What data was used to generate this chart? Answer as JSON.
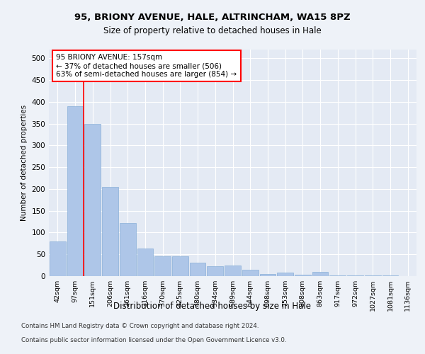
{
  "title1": "95, BRIONY AVENUE, HALE, ALTRINCHAM, WA15 8PZ",
  "title2": "Size of property relative to detached houses in Hale",
  "xlabel": "Distribution of detached houses by size in Hale",
  "ylabel": "Number of detached properties",
  "bar_labels": [
    "42sqm",
    "97sqm",
    "151sqm",
    "206sqm",
    "261sqm",
    "316sqm",
    "370sqm",
    "425sqm",
    "480sqm",
    "534sqm",
    "589sqm",
    "644sqm",
    "698sqm",
    "753sqm",
    "808sqm",
    "863sqm",
    "917sqm",
    "972sqm",
    "1027sqm",
    "1081sqm",
    "1136sqm"
  ],
  "bar_values": [
    80,
    390,
    350,
    205,
    122,
    63,
    45,
    45,
    31,
    22,
    25,
    15,
    5,
    8,
    4,
    10,
    2,
    2,
    1,
    1,
    0
  ],
  "bar_color": "#aec6e8",
  "bar_edge_color": "#8ab0d8",
  "vline_x": 2,
  "vline_color": "red",
  "annotation_text": "95 BRIONY AVENUE: 157sqm\n← 37% of detached houses are smaller (506)\n63% of semi-detached houses are larger (854) →",
  "annotation_box_color": "white",
  "annotation_box_edge": "red",
  "ylim": [
    0,
    520
  ],
  "yticks": [
    0,
    50,
    100,
    150,
    200,
    250,
    300,
    350,
    400,
    450,
    500
  ],
  "footer1": "Contains HM Land Registry data © Crown copyright and database right 2024.",
  "footer2": "Contains public sector information licensed under the Open Government Licence v3.0.",
  "bg_color": "#eef2f8",
  "plot_bg_color": "#e4eaf4"
}
